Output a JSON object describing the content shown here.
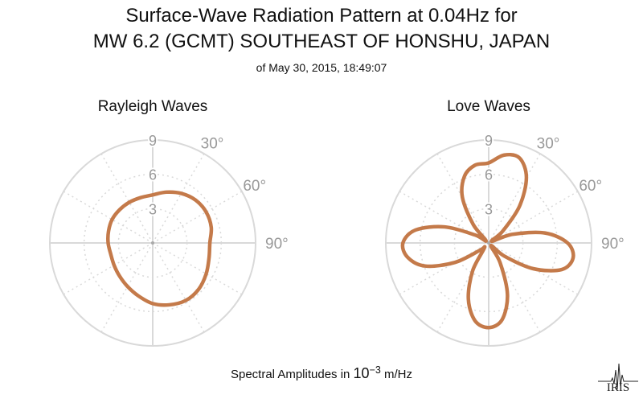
{
  "title": {
    "line1": "Surface-Wave Radiation Pattern at 0.04Hz for",
    "line2": "MW 6.2 (GCMT) SOUTHEAST OF HONSHU, JAPAN",
    "line3": "of May 30, 2015, 18:49:07"
  },
  "footer": {
    "prefix": "Spectral Amplitudes in ",
    "base": "10",
    "exponent": "−3",
    "suffix": " m/Hz"
  },
  "logo_text": "IRIS",
  "colors": {
    "curve": "#c47a4a",
    "grid": "#d9d9d9",
    "label": "#999999"
  },
  "chart_data": [
    {
      "type": "polar-line",
      "title": "Rayleigh Waves",
      "radial_ticks": [
        "3",
        "6",
        "9"
      ],
      "r_max": 9,
      "angle_labels": [
        "30°",
        "60°",
        "90°"
      ],
      "grid": true,
      "series": [
        {
          "theta": [
            0,
            15,
            30,
            45,
            60,
            75,
            90,
            105,
            120,
            135,
            150,
            165,
            180,
            195,
            210,
            225,
            240,
            255,
            270,
            285,
            300,
            315,
            330,
            345
          ],
          "r": [
            4.2,
            4.6,
            5.0,
            5.3,
            5.4,
            5.3,
            5.0,
            5.1,
            5.4,
            5.7,
            5.8,
            5.6,
            5.3,
            4.8,
            4.4,
            4.1,
            3.9,
            3.8,
            3.9,
            4.0,
            4.1,
            4.1,
            4.1,
            4.1
          ]
        }
      ]
    },
    {
      "type": "polar-line",
      "title": "Love Waves",
      "radial_ticks": [
        "3",
        "6",
        "9"
      ],
      "r_max": 9,
      "angle_labels": [
        "30°",
        "60°",
        "90°"
      ],
      "grid": true,
      "series": [
        {
          "theta": [
            0,
            10,
            20,
            30,
            40,
            50,
            60,
            70,
            80,
            90,
            100,
            110,
            120,
            130,
            140,
            150,
            160,
            170,
            180,
            190,
            200,
            210,
            220,
            230,
            240,
            250,
            260,
            270,
            280,
            290,
            300,
            310,
            320,
            330,
            340,
            350
          ],
          "r": [
            7.0,
            7.8,
            7.9,
            6.6,
            4.2,
            1.6,
            0.3,
            2.2,
            5.0,
            6.9,
            7.5,
            6.8,
            4.5,
            1.8,
            0.3,
            2.0,
            4.8,
            6.8,
            7.4,
            6.9,
            5.2,
            2.8,
            0.6,
            1.0,
            3.4,
            5.9,
            7.2,
            7.5,
            6.5,
            4.1,
            1.4,
            0.3,
            2.1,
            4.6,
            6.2,
            6.9
          ]
        }
      ]
    }
  ]
}
